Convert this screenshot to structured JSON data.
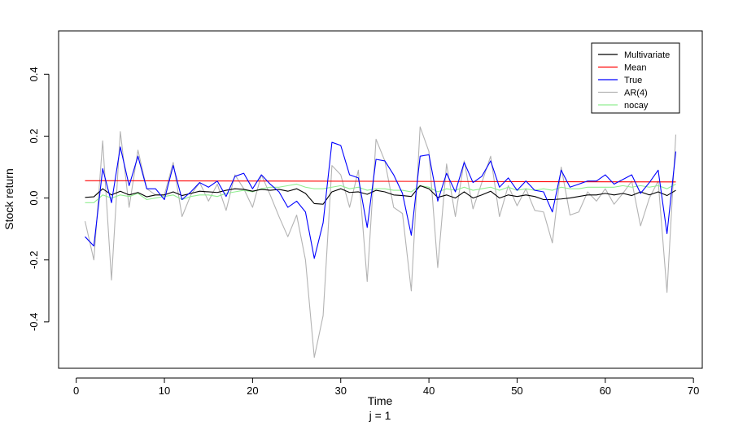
{
  "chart_data": {
    "type": "line",
    "title": "",
    "xlabel": "Time",
    "subtitle": "j = 1",
    "ylabel": "Stock return",
    "xlim": [
      -2,
      71
    ],
    "ylim": [
      -0.55,
      0.54
    ],
    "x_ticks": [
      0,
      10,
      20,
      30,
      40,
      50,
      60,
      70
    ],
    "x_tick_labels": [
      "0",
      "10",
      "20",
      "30",
      "40",
      "50",
      "60",
      "70"
    ],
    "y_ticks": [
      -0.4,
      -0.2,
      0.0,
      0.2,
      0.4
    ],
    "y_tick_labels": [
      "-0.4",
      "-0.2",
      "0.0",
      "0.2",
      "0.4"
    ],
    "grid": false,
    "legend_position": "top-right",
    "series": [
      {
        "name": "Multivariate",
        "color": "#000000",
        "x": [
          1,
          2,
          3,
          4,
          5,
          6,
          7,
          8,
          9,
          10,
          11,
          12,
          13,
          14,
          15,
          16,
          17,
          18,
          19,
          20,
          21,
          22,
          23,
          24,
          25,
          26,
          27,
          28,
          29,
          30,
          31,
          32,
          33,
          34,
          35,
          36,
          37,
          38,
          39,
          40,
          41,
          42,
          43,
          44,
          45,
          46,
          47,
          48,
          49,
          50,
          51,
          52,
          53,
          54,
          55,
          56,
          57,
          58,
          59,
          60,
          61,
          62,
          63,
          64,
          65,
          66,
          67,
          68
        ],
        "y": [
          0.002,
          0.004,
          0.03,
          0.01,
          0.022,
          0.01,
          0.018,
          0.004,
          0.01,
          0.01,
          0.02,
          0.008,
          0.015,
          0.022,
          0.02,
          0.018,
          0.025,
          0.03,
          0.028,
          0.022,
          0.028,
          0.025,
          0.028,
          0.022,
          0.03,
          0.015,
          -0.018,
          -0.02,
          0.02,
          0.03,
          0.018,
          0.02,
          0.012,
          0.025,
          0.02,
          0.01,
          0.008,
          0.005,
          0.04,
          0.03,
          0.002,
          0.01,
          0.0,
          0.02,
          0.0,
          0.01,
          0.022,
          0.0,
          0.01,
          0.005,
          0.01,
          0.005,
          -0.005,
          -0.005,
          -0.003,
          0.0,
          0.005,
          0.01,
          0.01,
          0.015,
          0.01,
          0.015,
          0.008,
          0.02,
          0.01,
          0.02,
          0.008,
          0.025
        ]
      },
      {
        "name": "Mean",
        "color": "#ff0000",
        "x": [
          1,
          68
        ],
        "y": [
          0.056,
          0.052
        ]
      },
      {
        "name": "True",
        "color": "#0000ff",
        "x": [
          1,
          2,
          3,
          4,
          5,
          6,
          7,
          8,
          9,
          10,
          11,
          12,
          13,
          14,
          15,
          16,
          17,
          18,
          19,
          20,
          21,
          22,
          23,
          24,
          25,
          26,
          27,
          28,
          29,
          30,
          31,
          32,
          33,
          34,
          35,
          36,
          37,
          38,
          39,
          40,
          41,
          42,
          43,
          44,
          45,
          46,
          47,
          48,
          49,
          50,
          51,
          52,
          53,
          54,
          55,
          56,
          57,
          58,
          59,
          60,
          61,
          62,
          63,
          64,
          65,
          66,
          67,
          68
        ],
        "y": [
          -0.125,
          -0.155,
          0.095,
          -0.015,
          0.165,
          0.04,
          0.135,
          0.03,
          0.03,
          -0.005,
          0.105,
          -0.005,
          0.02,
          0.05,
          0.035,
          0.055,
          0.005,
          0.07,
          0.08,
          0.03,
          0.075,
          0.045,
          0.02,
          -0.03,
          -0.01,
          -0.045,
          -0.195,
          -0.08,
          0.18,
          0.17,
          0.075,
          0.065,
          -0.095,
          0.125,
          0.12,
          0.075,
          0.015,
          -0.12,
          0.135,
          0.14,
          -0.01,
          0.08,
          0.02,
          0.115,
          0.05,
          0.07,
          0.12,
          0.035,
          0.065,
          0.025,
          0.055,
          0.025,
          0.02,
          -0.045,
          0.09,
          0.035,
          0.045,
          0.055,
          0.055,
          0.075,
          0.045,
          0.06,
          0.075,
          0.015,
          0.05,
          0.09,
          -0.115,
          0.15
        ]
      },
      {
        "name": "AR(4)",
        "color": "#b3b3b3",
        "x": [
          1,
          2,
          3,
          4,
          5,
          6,
          7,
          8,
          9,
          10,
          11,
          12,
          13,
          14,
          15,
          16,
          17,
          18,
          19,
          20,
          21,
          22,
          23,
          24,
          25,
          26,
          27,
          28,
          29,
          30,
          31,
          32,
          33,
          34,
          35,
          36,
          37,
          38,
          39,
          40,
          41,
          42,
          43,
          44,
          45,
          46,
          47,
          48,
          49,
          50,
          51,
          52,
          53,
          54,
          55,
          56,
          57,
          58,
          59,
          60,
          61,
          62,
          63,
          64,
          65,
          66,
          67,
          68
        ],
        "y": [
          -0.075,
          -0.2,
          0.185,
          -0.265,
          0.215,
          -0.03,
          0.155,
          0.03,
          0.01,
          0.01,
          0.115,
          -0.06,
          0.01,
          0.05,
          -0.01,
          0.045,
          -0.04,
          0.075,
          0.03,
          -0.03,
          0.075,
          0.01,
          -0.06,
          -0.125,
          -0.055,
          -0.2,
          -0.515,
          -0.38,
          0.105,
          0.075,
          -0.03,
          0.09,
          -0.27,
          0.19,
          0.12,
          -0.03,
          -0.05,
          -0.3,
          0.23,
          0.15,
          -0.225,
          0.11,
          -0.06,
          0.12,
          -0.035,
          0.05,
          0.135,
          -0.06,
          0.04,
          -0.025,
          0.03,
          -0.04,
          -0.045,
          -0.145,
          0.1,
          -0.055,
          -0.045,
          0.02,
          -0.01,
          0.03,
          -0.02,
          0.015,
          0.055,
          -0.09,
          0.0,
          0.055,
          -0.305,
          0.205
        ]
      },
      {
        "name": "nocay",
        "color": "#90ee90",
        "x": [
          1,
          2,
          3,
          4,
          5,
          6,
          7,
          8,
          9,
          10,
          11,
          12,
          13,
          14,
          15,
          16,
          17,
          18,
          19,
          20,
          21,
          22,
          23,
          24,
          25,
          26,
          27,
          28,
          29,
          30,
          31,
          32,
          33,
          34,
          35,
          36,
          37,
          38,
          39,
          40,
          41,
          42,
          43,
          44,
          45,
          46,
          47,
          48,
          49,
          50,
          51,
          52,
          53,
          54,
          55,
          56,
          57,
          58,
          59,
          60,
          61,
          62,
          63,
          64,
          65,
          66,
          67,
          68
        ],
        "y": [
          -0.015,
          -0.015,
          0.01,
          0.0,
          0.01,
          0.005,
          0.015,
          -0.005,
          0.0,
          0.005,
          0.01,
          -0.005,
          0.005,
          0.01,
          0.01,
          0.005,
          0.015,
          0.02,
          0.025,
          0.02,
          0.03,
          0.035,
          0.035,
          0.04,
          0.045,
          0.035,
          0.03,
          0.03,
          0.035,
          0.04,
          0.03,
          0.035,
          0.025,
          0.03,
          0.03,
          0.025,
          0.025,
          0.02,
          0.04,
          0.035,
          0.02,
          0.03,
          0.025,
          0.035,
          0.025,
          0.03,
          0.035,
          0.025,
          0.035,
          0.025,
          0.03,
          0.025,
          0.03,
          0.025,
          0.035,
          0.03,
          0.03,
          0.035,
          0.035,
          0.035,
          0.035,
          0.04,
          0.035,
          0.04,
          0.035,
          0.04,
          0.03,
          0.045
        ]
      }
    ]
  }
}
